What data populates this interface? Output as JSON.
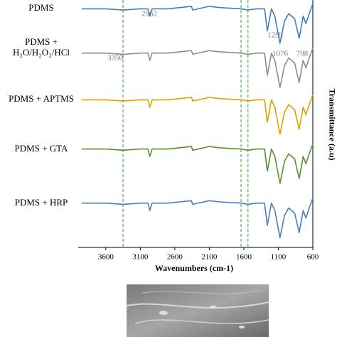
{
  "chart_data": {
    "type": "line",
    "x_label": "Wavenumbers (cm-1)",
    "y_label": "Transmittance (a.u)",
    "xlim": [
      4000,
      600
    ],
    "ylim": [
      0,
      100
    ],
    "xticks": [
      3600,
      3100,
      2600,
      2100,
      1600,
      1100,
      600
    ],
    "x": [
      3950,
      3600,
      3350,
      3100,
      2990,
      2962,
      2930,
      2700,
      2360,
      2340,
      2100,
      1950,
      1640,
      1540,
      1420,
      1300,
      1259,
      1200,
      1150,
      1076,
      1010,
      950,
      864,
      798,
      740,
      700,
      640,
      600
    ],
    "series": [
      {
        "name": "PDMS",
        "color": "#3f7fc0",
        "values": [
          97,
          97,
          96.5,
          97,
          97,
          94,
          97,
          97,
          98,
          96.5,
          98,
          97.5,
          97,
          96.5,
          97,
          97,
          88,
          97,
          94,
          83,
          92,
          95,
          93,
          85,
          94,
          91,
          96,
          99
        ]
      },
      {
        "name": "PDMS + H₂O/H₂O₂/HCl",
        "color": "#8c8c8c",
        "values": [
          79,
          79,
          78.5,
          79,
          79,
          76,
          79,
          79,
          80,
          78.5,
          80,
          79.5,
          79,
          78.5,
          79,
          79,
          70,
          79,
          76,
          65,
          74,
          77,
          75,
          67,
          76,
          73,
          78,
          81
        ]
      },
      {
        "name": "PDMS + APTMS",
        "color": "#d9a300",
        "values": [
          60,
          60,
          59.5,
          60,
          60,
          57,
          60,
          60,
          61,
          59.5,
          61,
          60.5,
          60,
          59.5,
          60,
          60,
          51,
          60,
          57,
          46,
          55,
          58,
          56,
          48,
          57,
          54,
          59,
          62
        ]
      },
      {
        "name": "PDMS + GTA",
        "color": "#5a8f2e",
        "values": [
          40,
          40,
          39.5,
          40,
          40,
          37,
          40,
          40,
          41,
          39.5,
          41,
          40.5,
          40,
          39.5,
          40,
          40,
          31,
          40,
          37,
          26,
          35,
          38,
          36,
          28,
          37,
          34,
          39,
          42
        ]
      },
      {
        "name": "PDMS + HRP",
        "color": "#4a7ebb",
        "values": [
          18,
          18,
          17.5,
          18,
          18,
          15,
          18,
          18,
          19,
          17.5,
          19,
          18.5,
          18,
          17.5,
          18,
          18,
          9,
          18,
          15,
          4,
          13,
          16,
          14,
          6,
          15,
          12,
          17,
          20
        ]
      }
    ],
    "reference_lines": [
      3350,
      1640,
      1540
    ],
    "reference_color": "#4caf50",
    "annotations": [
      "2962",
      "1259",
      "1076",
      "798",
      "3350"
    ]
  }
}
